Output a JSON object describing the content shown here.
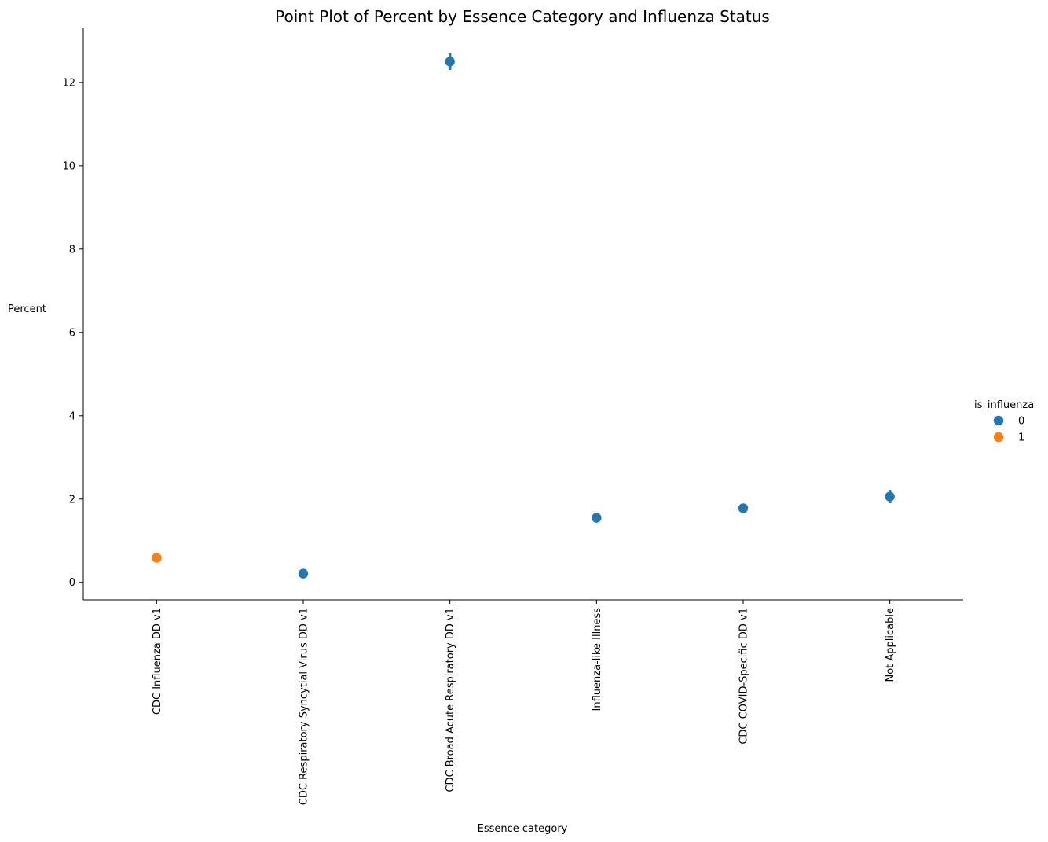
{
  "chart_data": {
    "type": "scatter",
    "subtype": "pointplot",
    "title": "Point Plot of Percent by Essence Category and Influenza Status",
    "xlabel": "Essence category",
    "ylabel": "Percent",
    "categories": [
      "CDC Influenza DD v1",
      "CDC Respiratory Syncytial Virus DD v1",
      "CDC Broad Acute Respiratory DD v1",
      "Influenza-like Illness",
      "CDC COVID-Specific DD v1",
      "Not Applicable"
    ],
    "ylim": [
      -0.42,
      13.3
    ],
    "yticks": [
      0,
      2,
      4,
      6,
      8,
      10,
      12
    ],
    "grid": false,
    "legend": {
      "title": "is_influenza",
      "placement": "center-right",
      "entries": [
        "0",
        "1"
      ]
    },
    "points": [
      {
        "category": "CDC Influenza DD v1",
        "hue": "1",
        "value": 0.59,
        "ci_low": 0.57,
        "ci_high": 0.61
      },
      {
        "category": "CDC Respiratory Syncytial Virus DD v1",
        "hue": "0",
        "value": 0.21,
        "ci_low": 0.19,
        "ci_high": 0.23
      },
      {
        "category": "CDC Broad Acute Respiratory DD v1",
        "hue": "0",
        "value": 12.5,
        "ci_low": 12.3,
        "ci_high": 12.7
      },
      {
        "category": "Influenza-like Illness",
        "hue": "0",
        "value": 1.55,
        "ci_low": 1.53,
        "ci_high": 1.57
      },
      {
        "category": "CDC COVID-Specific DD v1",
        "hue": "0",
        "value": 1.78,
        "ci_low": 1.73,
        "ci_high": 1.83
      },
      {
        "category": "Not Applicable",
        "hue": "0",
        "value": 2.06,
        "ci_low": 1.9,
        "ci_high": 2.22
      }
    ],
    "colors": {
      "0": "#1f77b4",
      "1": "#ff7f0e",
      "axis": "#000000"
    }
  }
}
